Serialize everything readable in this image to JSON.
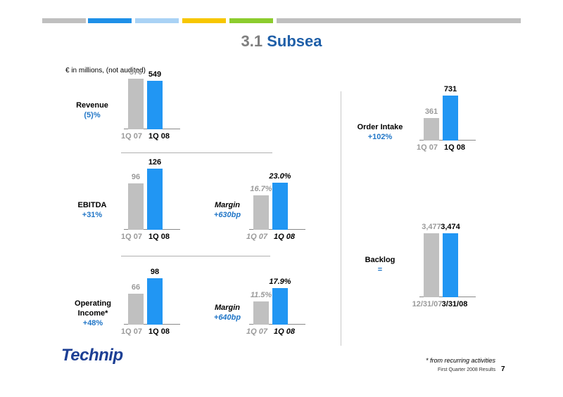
{
  "header": {
    "strip_colors": [
      "#bfbfbf",
      "#1e90e8",
      "#a9d2f5",
      "#f7c600",
      "#8ccc2e",
      "#bfbfbf"
    ]
  },
  "title": {
    "number": "3.1",
    "name": "Subsea"
  },
  "units_note": "€ in millions, (not audited)",
  "colors": {
    "previous": "#c0c0c0",
    "current": "#2196f3",
    "accent": "#2176c7",
    "title": "#1f5fa8"
  },
  "metrics": {
    "revenue": {
      "name": "Revenue",
      "change": "(5)%"
    },
    "ebitda": {
      "name": "EBITDA",
      "change": "+31%"
    },
    "ebitda_margin": {
      "name": "Margin",
      "change": "+630bp"
    },
    "operating_income": {
      "name_line1": "Operating",
      "name_line2": "Income*",
      "change": "+48%"
    },
    "op_margin": {
      "name": "Margin",
      "change": "+640bp"
    },
    "order_intake": {
      "name": "Order Intake",
      "change": "+102%"
    },
    "backlog": {
      "name": "Backlog",
      "change": "="
    }
  },
  "chart_data": [
    {
      "type": "bar",
      "id": "revenue",
      "categories": [
        "1Q 07",
        "1Q 08"
      ],
      "values": [
        576,
        549
      ],
      "labels": [
        "576",
        "549"
      ],
      "ylim": [
        0,
        576
      ]
    },
    {
      "type": "bar",
      "id": "ebitda",
      "categories": [
        "1Q 07",
        "1Q 08"
      ],
      "values": [
        96,
        126
      ],
      "labels": [
        "96",
        "126"
      ],
      "ylim": [
        0,
        126
      ]
    },
    {
      "type": "bar",
      "id": "ebitda_margin",
      "categories": [
        "1Q 07",
        "1Q 08"
      ],
      "values": [
        16.7,
        23.0
      ],
      "labels": [
        "16.7%",
        "23.0%"
      ],
      "ylim": [
        0,
        23.0
      ]
    },
    {
      "type": "bar",
      "id": "operating_income",
      "categories": [
        "1Q 07",
        "1Q 08"
      ],
      "values": [
        66,
        98
      ],
      "labels": [
        "66",
        "98"
      ],
      "ylim": [
        0,
        98
      ]
    },
    {
      "type": "bar",
      "id": "op_margin",
      "categories": [
        "1Q 07",
        "1Q 08"
      ],
      "values": [
        11.5,
        17.9
      ],
      "labels": [
        "11.5%",
        "17.9%"
      ],
      "ylim": [
        0,
        17.9
      ]
    },
    {
      "type": "bar",
      "id": "order_intake",
      "categories": [
        "1Q 07",
        "1Q 08"
      ],
      "values": [
        361,
        731
      ],
      "labels": [
        "361",
        "731"
      ],
      "ylim": [
        0,
        731
      ]
    },
    {
      "type": "bar",
      "id": "backlog",
      "categories": [
        "12/31/07",
        "3/31/08"
      ],
      "values": [
        3477,
        3474
      ],
      "labels": [
        "3,477",
        "3,474"
      ],
      "ylim": [
        0,
        3477
      ]
    }
  ],
  "logo": {
    "text": "Technip"
  },
  "footnote": "* from recurring activities",
  "footer": {
    "label": "First Quarter 2008 Results",
    "page": "7"
  }
}
